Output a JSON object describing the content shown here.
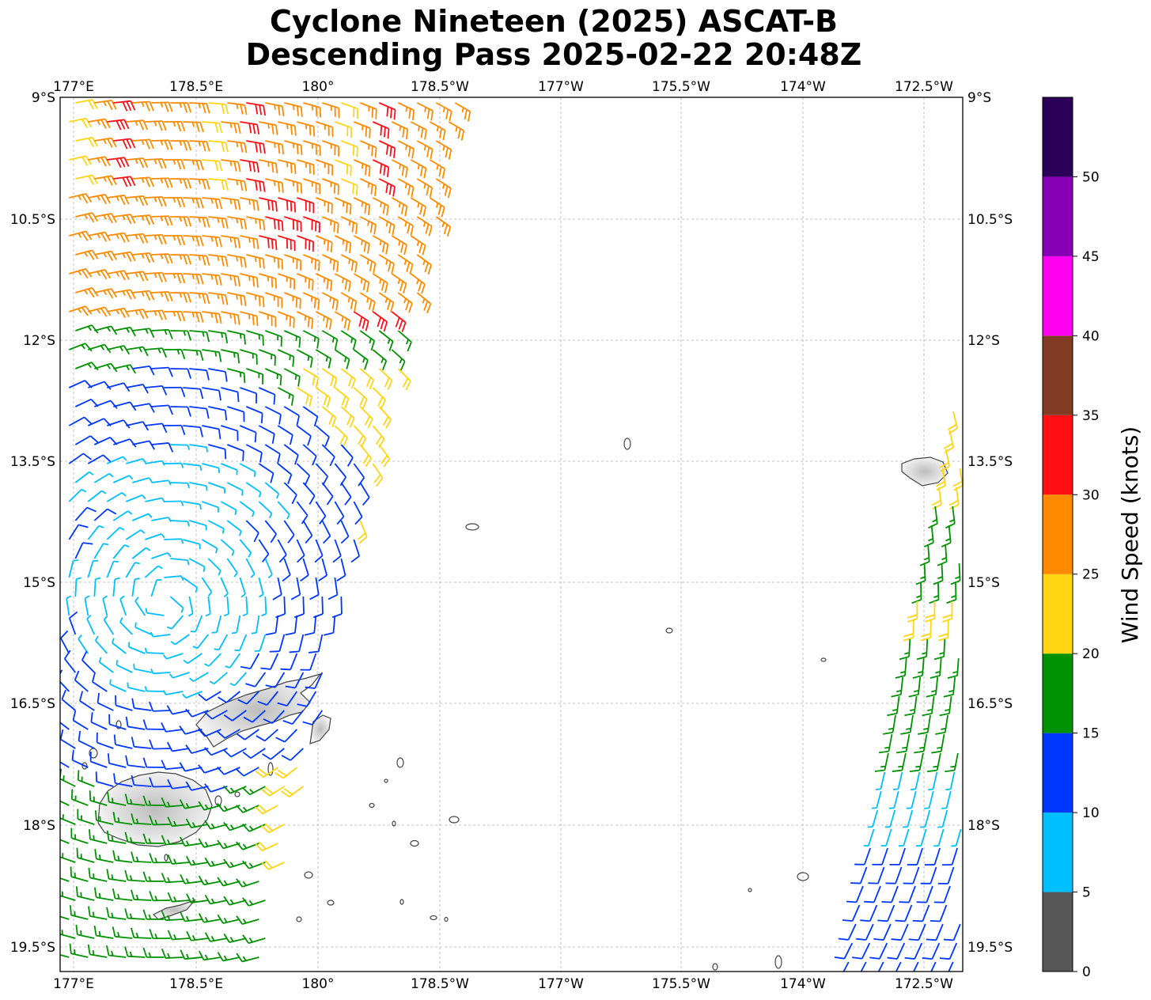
{
  "title": {
    "line1": "Cyclone Nineteen (2025) ASCAT-B",
    "line2": "Descending Pass 2025-02-22 20:48Z"
  },
  "map": {
    "lon_ticks_top": [
      "177°E",
      "178.5°E",
      "180°",
      "178.5°W",
      "177°W",
      "175.5°W",
      "174°W",
      "172.5°W"
    ],
    "lon_ticks_bottom": [
      "177°E",
      "178.5°E",
      "180°",
      "178.5°W",
      "177°W",
      "175.5°W",
      "174°W",
      "172.5°W"
    ],
    "lat_ticks_left": [
      "9°S",
      "10.5°S",
      "12°S",
      "13.5°S",
      "15°S",
      "16.5°S",
      "18°S",
      "19.5°S"
    ],
    "lat_ticks_right": [
      "9°S",
      "10.5°S",
      "12°S",
      "13.5°S",
      "15°S",
      "16.5°S",
      "18°S",
      "19.5°S"
    ],
    "gridlines": true,
    "land_color": "#e6e6e6",
    "coastline_color": "#444444"
  },
  "colorbar": {
    "label": "Wind Speed (knots)",
    "ticks": [
      "0",
      "5",
      "10",
      "15",
      "20",
      "25",
      "30",
      "35",
      "40",
      "45",
      "50"
    ],
    "bins": [
      {
        "from": 0,
        "to": 5,
        "color": "#585858"
      },
      {
        "from": 5,
        "to": 10,
        "color": "#00bfff"
      },
      {
        "from": 10,
        "to": 15,
        "color": "#0037ff"
      },
      {
        "from": 15,
        "to": 20,
        "color": "#009200"
      },
      {
        "from": 20,
        "to": 25,
        "color": "#ffd514"
      },
      {
        "from": 25,
        "to": 30,
        "color": "#ff8a00"
      },
      {
        "from": 30,
        "to": 35,
        "color": "#ff0f14"
      },
      {
        "from": 35,
        "to": 40,
        "color": "#823b24"
      },
      {
        "from": 40,
        "to": 45,
        "color": "#ff00f0"
      },
      {
        "from": 45,
        "to": 50,
        "color": "#8700b5"
      },
      {
        "from": 50,
        "to": 55,
        "color": "#2c0059"
      }
    ]
  }
}
